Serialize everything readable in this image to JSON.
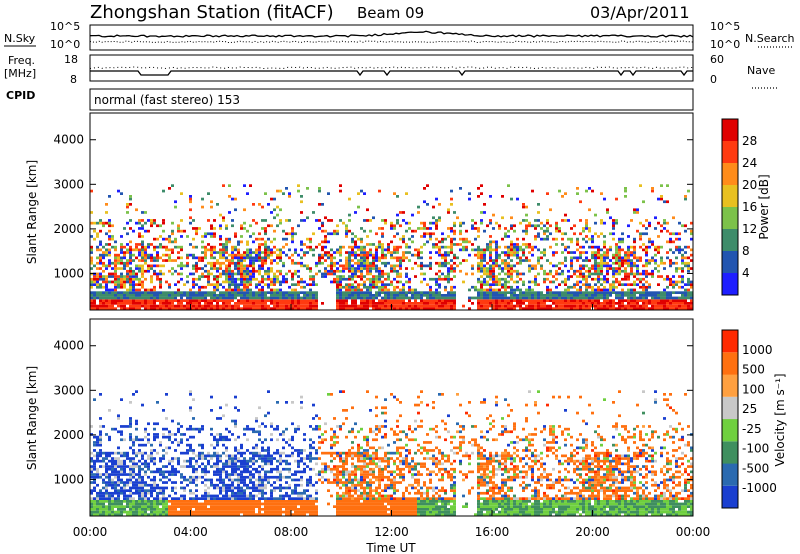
{
  "header": {
    "station": "Zhongshan Station (fitACF)",
    "beam": "Beam 09",
    "date": "03/Apr/2011"
  },
  "top_panels": {
    "nsky_label": "N.Sky",
    "nsky_ticks": [
      "10^5",
      "10^0"
    ],
    "nsearch_label": "N.Search",
    "nsearch_ticks": [
      "10^5",
      "10^0"
    ],
    "freq_label_1": "Freq.",
    "freq_label_2": "[MHz]",
    "freq_ticks": [
      "18",
      "8"
    ],
    "nave_label": "Nave",
    "nave_ticks": [
      "60",
      "0"
    ],
    "cpid_label": "CPID",
    "cpid_text": "normal (fast stereo) 153"
  },
  "chart_data": [
    {
      "type": "heatmap",
      "name": "power",
      "ylabel": "Slant Range [km]",
      "yticks": [
        "4000",
        "3000",
        "2000",
        "1000"
      ],
      "ylim": [
        180,
        4600
      ],
      "colorbar_label": "Power [dB]",
      "colorbar_ticks": [
        "28",
        "24",
        "20",
        "16",
        "12",
        "8",
        "4"
      ],
      "colors": [
        "#1e1eff",
        "#2255b0",
        "#3e8c6a",
        "#7cc24a",
        "#e8c020",
        "#ff8c1a",
        "#ff3a10",
        "#e00000"
      ]
    },
    {
      "type": "heatmap",
      "name": "velocity",
      "ylabel": "Slant Range [km]",
      "yticks": [
        "4000",
        "3000",
        "2000",
        "1000"
      ],
      "ylim": [
        180,
        4600
      ],
      "colorbar_label": "Velocity [m s⁻¹]",
      "colorbar_ticks": [
        "1000",
        "500",
        "100",
        "25",
        "-25",
        "-100",
        "-500",
        "-1000"
      ],
      "colors": [
        "#1a3fd0",
        "#2a6ab0",
        "#3f8f5f",
        "#6fcf3f",
        "#c8c8c8",
        "#ffa040",
        "#ff7010",
        "#ff2a00"
      ]
    }
  ],
  "x_axis": {
    "ticks": [
      "00:00",
      "04:00",
      "08:00",
      "12:00",
      "16:00",
      "20:00",
      "00:00"
    ],
    "label": "Time UT"
  }
}
